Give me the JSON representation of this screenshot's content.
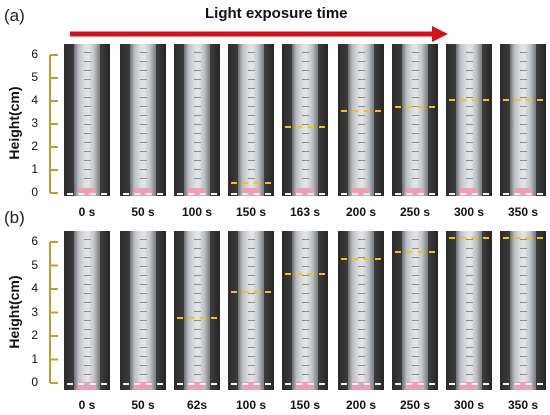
{
  "title": "Light exposure time",
  "axis": {
    "ylabel": "Height(cm)",
    "ticks": [
      "0",
      "1",
      "2",
      "3",
      "4",
      "5",
      "6"
    ]
  },
  "colors": {
    "arrow": "#d0121b",
    "axis": "#c89a2e",
    "level_line": "#f0c419",
    "baseline": "#f2f2f2",
    "cap": "#e8a0b4"
  },
  "panels": [
    {
      "label": "(a)",
      "photos": [
        {
          "time": "0 s",
          "height_cm": null
        },
        {
          "time": "50 s",
          "height_cm": null
        },
        {
          "time": "100 s",
          "height_cm": null
        },
        {
          "time": "150 s",
          "height_cm": 0.5
        },
        {
          "time": "163 s",
          "height_cm": 2.9
        },
        {
          "time": "200 s",
          "height_cm": 3.6
        },
        {
          "time": "250 s",
          "height_cm": 3.8
        },
        {
          "time": "300 s",
          "height_cm": 4.1
        },
        {
          "time": "350 s",
          "height_cm": 4.1
        }
      ]
    },
    {
      "label": "(b)",
      "photos": [
        {
          "time": "0 s",
          "height_cm": null
        },
        {
          "time": "50 s",
          "height_cm": null
        },
        {
          "time": "62s",
          "height_cm": 2.8
        },
        {
          "time": "100 s",
          "height_cm": 3.9
        },
        {
          "time": "150 s",
          "height_cm": 4.7
        },
        {
          "time": "200 s",
          "height_cm": 5.3
        },
        {
          "time": "250 s",
          "height_cm": 5.6
        },
        {
          "time": "300 s",
          "height_cm": 6.2
        },
        {
          "time": "350 s",
          "height_cm": 6.2
        }
      ]
    }
  ]
}
